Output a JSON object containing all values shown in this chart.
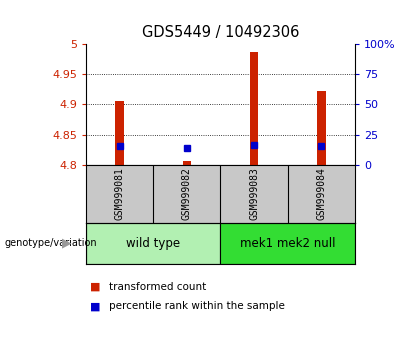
{
  "title": "GDS5449 / 10492306",
  "samples": [
    "GSM999081",
    "GSM999082",
    "GSM999083",
    "GSM999084"
  ],
  "red_values": [
    4.905,
    4.806,
    4.987,
    4.923
  ],
  "blue_values": [
    4.831,
    4.828,
    4.832,
    4.831
  ],
  "ylim_left": [
    4.8,
    5.0
  ],
  "ylim_right": [
    0,
    100
  ],
  "yticks_left": [
    4.8,
    4.85,
    4.9,
    4.95,
    5.0
  ],
  "yticks_right": [
    0,
    25,
    50,
    75,
    100
  ],
  "ytick_labels_left": [
    "4.8",
    "4.85",
    "4.9",
    "4.95",
    "5"
  ],
  "ytick_labels_right": [
    "0",
    "25",
    "50",
    "75",
    "100%"
  ],
  "groups": [
    {
      "label": "wild type",
      "samples": [
        0,
        1
      ],
      "color": "#b2f0b2"
    },
    {
      "label": "mek1 mek2 null",
      "samples": [
        2,
        3
      ],
      "color": "#33dd33"
    }
  ],
  "group_label": "genotype/variation",
  "legend_red": "transformed count",
  "legend_blue": "percentile rank within the sample",
  "bar_color": "#cc2200",
  "blue_color": "#0000cc",
  "bar_width": 0.13,
  "blue_marker_size": 5,
  "title_fontsize": 10.5,
  "tick_fontsize": 8,
  "sample_fontsize": 7,
  "group_fontsize": 8.5,
  "legend_fontsize": 7.5,
  "bg_sample_row": "#c8c8c8"
}
